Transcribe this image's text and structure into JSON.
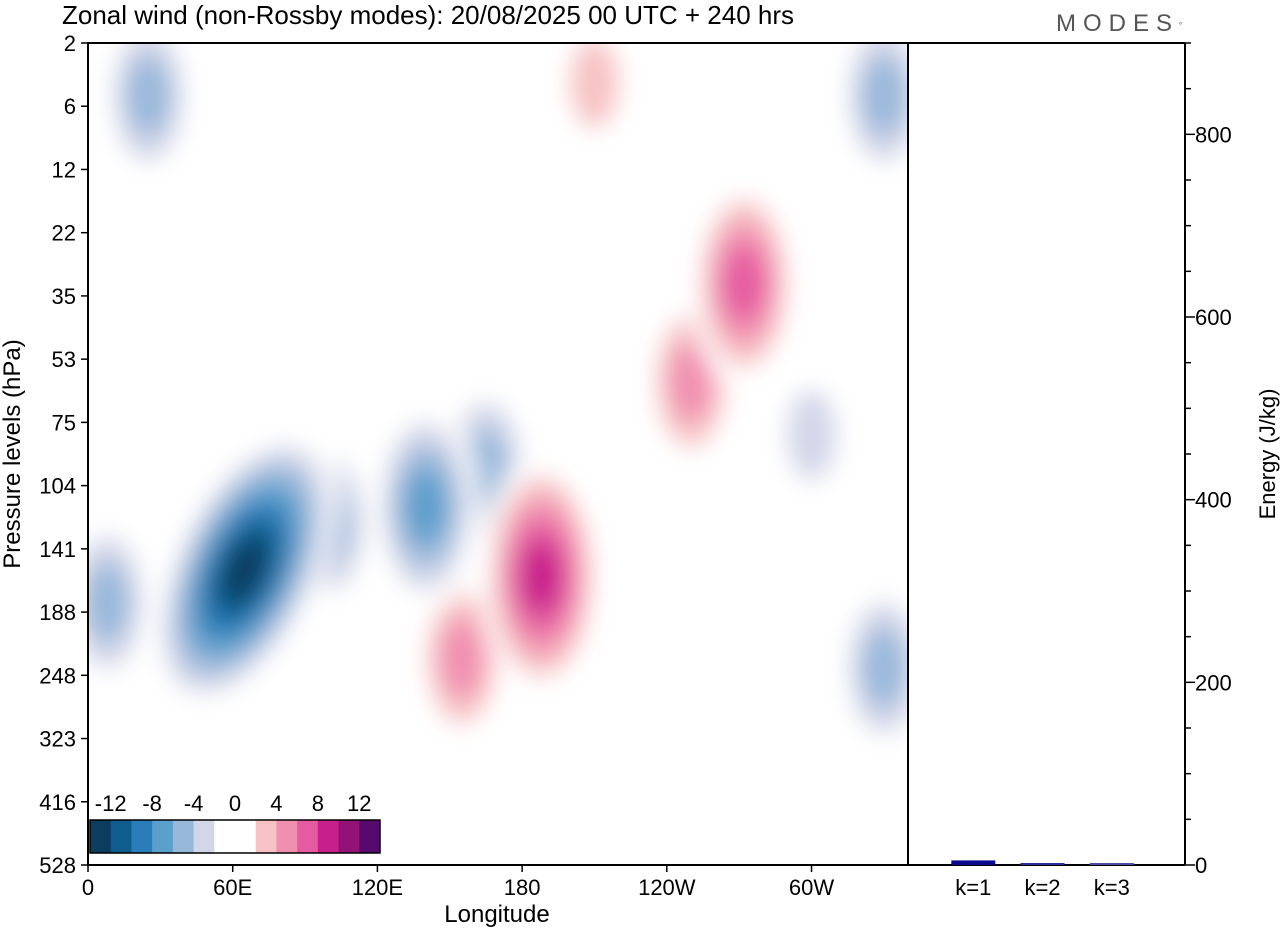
{
  "title": "Zonal wind (non-Rossby modes):  20/08/2025  00 UTC  + 240 hrs",
  "logo": {
    "text": "MODES",
    "mark": "°"
  },
  "chart_data": [
    {
      "type": "heatmap",
      "title": "Zonal wind (non-Rossby modes):  20/08/2025  00 UTC  + 240 hrs",
      "xlabel": "Longitude",
      "ylabel": "Pressure levels (hPa)",
      "x_ticks": [
        {
          "label": "0",
          "lon": 0
        },
        {
          "label": "60E",
          "lon": 60
        },
        {
          "label": "120E",
          "lon": 120
        },
        {
          "label": "180",
          "lon": 180
        },
        {
          "label": "120W",
          "lon": 240
        },
        {
          "label": "60W",
          "lon": 300
        }
      ],
      "x_range": [
        0,
        340
      ],
      "y_levels": [
        "2",
        "6",
        "12",
        "22",
        "35",
        "53",
        "75",
        "104",
        "141",
        "188",
        "248",
        "323",
        "416",
        "528"
      ],
      "colorbar": {
        "labels": [
          "-12",
          "-8",
          "-4",
          "0",
          "4",
          "8",
          "12"
        ],
        "bins": [
          {
            "lo": -16,
            "hi": -12,
            "color": "#0b3d5e"
          },
          {
            "lo": -12,
            "hi": -10,
            "color": "#0f5d8e"
          },
          {
            "lo": -10,
            "hi": -8,
            "color": "#2a7db8"
          },
          {
            "lo": -8,
            "hi": -6,
            "color": "#5b9fcc"
          },
          {
            "lo": -6,
            "hi": -4,
            "color": "#98b8da"
          },
          {
            "lo": -4,
            "hi": -2,
            "color": "#d2d6e8"
          },
          {
            "lo": -2,
            "hi": 0,
            "color": "#ffffff"
          },
          {
            "lo": 0,
            "hi": 2,
            "color": "#ffffff"
          },
          {
            "lo": 2,
            "hi": 4,
            "color": "#f7c2c4"
          },
          {
            "lo": 4,
            "hi": 6,
            "color": "#f08fb0"
          },
          {
            "lo": 6,
            "hi": 8,
            "color": "#e55aa0"
          },
          {
            "lo": 8,
            "hi": 10,
            "color": "#c71f8b"
          },
          {
            "lo": 10,
            "hi": 12,
            "color": "#931277"
          },
          {
            "lo": 12,
            "hi": 16,
            "color": "#560a6e"
          }
        ]
      },
      "features": [
        {
          "lon": 65,
          "level": 155,
          "value": -14,
          "note": "strongest easterly core near 60E, upper troposphere"
        },
        {
          "lon": 8,
          "level": 180,
          "value": -6
        },
        {
          "lon": 100,
          "level": 125,
          "value": -6
        },
        {
          "lon": 140,
          "level": 115,
          "value": -8
        },
        {
          "lon": 165,
          "level": 95,
          "value": -6
        },
        {
          "lon": 178,
          "level": 180,
          "value": 6
        },
        {
          "lon": 188,
          "level": 160,
          "value": 10,
          "note": "strongest westerly core near 180"
        },
        {
          "lon": 155,
          "level": 230,
          "value": 6
        },
        {
          "lon": 250,
          "level": 60,
          "value": 6
        },
        {
          "lon": 272,
          "level": 32,
          "value": 8
        },
        {
          "lon": 300,
          "level": 80,
          "value": -4
        },
        {
          "lon": 330,
          "level": 240,
          "value": -6
        },
        {
          "lon": 330,
          "level": 5,
          "value": -6
        },
        {
          "lon": 25,
          "level": 5,
          "value": -6
        },
        {
          "lon": 210,
          "level": 4,
          "value": 4
        }
      ]
    },
    {
      "type": "bar",
      "ylabel": "Energy (J/kg)",
      "ylim": [
        0,
        900
      ],
      "y_ticks": [
        "0",
        "200",
        "400",
        "600",
        "800"
      ],
      "categories": [
        "k=1",
        "k=2",
        "k=3"
      ],
      "values": [
        5,
        1.5,
        0.8
      ],
      "colors": [
        "#0a0a8c",
        "#2a2a9a",
        "#4a4aa8"
      ]
    }
  ]
}
